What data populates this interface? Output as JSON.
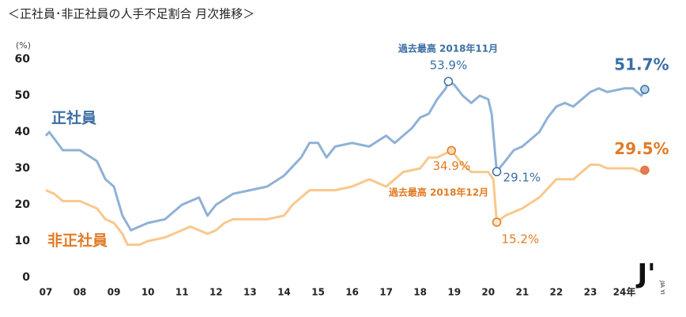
{
  "chart_data": {
    "type": "line",
    "title": "＜正社員･非正社員の人手不足割合 月次推移＞",
    "y_unit": "(%)",
    "ylim": [
      0,
      60
    ],
    "yticks": [
      0,
      10,
      20,
      30,
      40,
      50,
      60
    ],
    "xlim": [
      2007,
      2024.7
    ],
    "xticks": [
      {
        "value": 2007,
        "label": "07"
      },
      {
        "value": 2008,
        "label": "08"
      },
      {
        "value": 2009,
        "label": "09"
      },
      {
        "value": 2010,
        "label": "10"
      },
      {
        "value": 2011,
        "label": "11"
      },
      {
        "value": 2012,
        "label": "12"
      },
      {
        "value": 2013,
        "label": "13"
      },
      {
        "value": 2014,
        "label": "14"
      },
      {
        "value": 2015,
        "label": "15"
      },
      {
        "value": 2016,
        "label": "16"
      },
      {
        "value": 2017,
        "label": "17"
      },
      {
        "value": 2018,
        "label": "18"
      },
      {
        "value": 2019,
        "label": "19"
      },
      {
        "value": 2020,
        "label": "20"
      },
      {
        "value": 2021,
        "label": "21"
      },
      {
        "value": 2022,
        "label": "22"
      },
      {
        "value": 2023,
        "label": "23"
      },
      {
        "value": 2024,
        "label": "24年"
      }
    ],
    "grid": false,
    "series": [
      {
        "name": "正社員",
        "color": "#8fb1d6",
        "label_color": "#3a6ea5",
        "x": [
          2007.0,
          2007.1,
          2007.5,
          2008.0,
          2008.5,
          2008.75,
          2009.0,
          2009.25,
          2009.5,
          2009.75,
          2010.0,
          2010.5,
          2011.0,
          2011.5,
          2011.75,
          2012.0,
          2012.5,
          2013.0,
          2013.5,
          2014.0,
          2014.5,
          2014.75,
          2015.0,
          2015.25,
          2015.5,
          2016.0,
          2016.5,
          2017.0,
          2017.25,
          2017.75,
          2018.0,
          2018.25,
          2018.5,
          2018.75,
          2018.83,
          2019.0,
          2019.25,
          2019.5,
          2019.75,
          2020.0,
          2020.1,
          2020.25,
          2020.5,
          2020.75,
          2021.0,
          2021.5,
          2021.75,
          2022.0,
          2022.25,
          2022.5,
          2022.75,
          2023.0,
          2023.25,
          2023.5,
          2024.0,
          2024.25,
          2024.5,
          2024.6
        ],
        "values": [
          39,
          40,
          35,
          35,
          32,
          27,
          25,
          17,
          13,
          14,
          15,
          16,
          20,
          22,
          17,
          20,
          23,
          24,
          25,
          28,
          33,
          37,
          37,
          33,
          36,
          37,
          36,
          39,
          37,
          41,
          44,
          45,
          49,
          52,
          53.9,
          53,
          50,
          48,
          50,
          49,
          45,
          29.1,
          32,
          35,
          36,
          40,
          44,
          47,
          48,
          47,
          49,
          51,
          52,
          51,
          52,
          52,
          50,
          51.7
        ],
        "value_labels": [
          null,
          null,
          null,
          null,
          null,
          null,
          null,
          null,
          null,
          null,
          null,
          null,
          null,
          null,
          null,
          null,
          null,
          null,
          null,
          null,
          null,
          null,
          null,
          null,
          null,
          null,
          null,
          null,
          null,
          null,
          null,
          null,
          null,
          null,
          "53.9%",
          null,
          null,
          null,
          null,
          null,
          null,
          "29.1%",
          null,
          null,
          null,
          null,
          null,
          null,
          null,
          null,
          null,
          null,
          null,
          null,
          null,
          null,
          null,
          "51.7%"
        ]
      },
      {
        "name": "非正社員",
        "color": "#f8c88c",
        "label_color": "#e07b24",
        "x": [
          2007.0,
          2007.25,
          2007.5,
          2008.0,
          2008.5,
          2008.75,
          2009.0,
          2009.25,
          2009.4,
          2009.75,
          2010.0,
          2010.5,
          2011.0,
          2011.25,
          2011.75,
          2012.0,
          2012.25,
          2012.5,
          2013.0,
          2013.5,
          2014.0,
          2014.25,
          2014.75,
          2015.0,
          2015.5,
          2016.0,
          2016.5,
          2017.0,
          2017.25,
          2017.5,
          2018.0,
          2018.25,
          2018.5,
          2018.92,
          2019.25,
          2019.5,
          2020.0,
          2020.15,
          2020.25,
          2020.5,
          2021.0,
          2021.5,
          2022.0,
          2022.5,
          2023.0,
          2023.25,
          2023.5,
          2024.0,
          2024.25,
          2024.5,
          2024.6
        ],
        "values": [
          24,
          23,
          21,
          21,
          19,
          16,
          15,
          12,
          9,
          9,
          10,
          11,
          13,
          14,
          12,
          13,
          15,
          16,
          16,
          16,
          17,
          20,
          24,
          24,
          24,
          25,
          27,
          25,
          27,
          29,
          30,
          33,
          33,
          34.9,
          31,
          29,
          29,
          27,
          15.2,
          17,
          19,
          22,
          27,
          27,
          31,
          31,
          30,
          30,
          30,
          29,
          29.5
        ],
        "value_labels": [
          null,
          null,
          null,
          null,
          null,
          null,
          null,
          null,
          null,
          null,
          null,
          null,
          null,
          null,
          null,
          null,
          null,
          null,
          null,
          null,
          null,
          null,
          null,
          null,
          null,
          null,
          null,
          null,
          null,
          null,
          null,
          null,
          null,
          "34.9%",
          null,
          null,
          null,
          null,
          "15.2%",
          null,
          null,
          null,
          null,
          null,
          null,
          null,
          null,
          null,
          null,
          null,
          "29.5%"
        ]
      }
    ],
    "annotations": [
      {
        "text": "過去最高 2018年11月",
        "series": 0
      },
      {
        "text": "過去最高 2018年12月",
        "series": 1
      }
    ],
    "logo": {
      "mark": "J'",
      "text": "JIA YI"
    }
  }
}
